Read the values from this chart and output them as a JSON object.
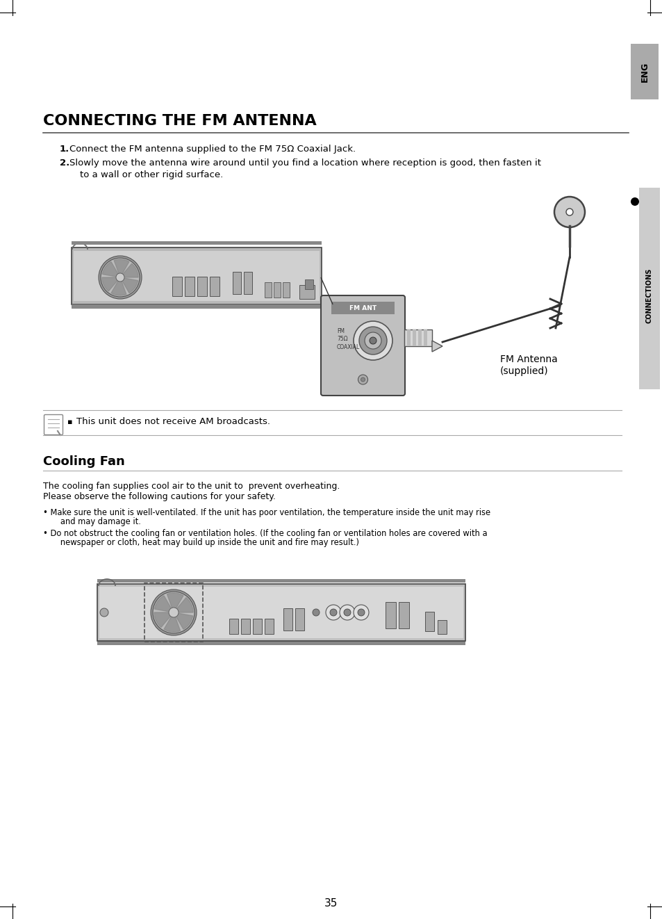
{
  "bg_color": "#ffffff",
  "page_number": "35",
  "eng_tab_text": "ENG",
  "connections_tab_text": "CONNECTIONS",
  "title": "CONNECTING THE FM ANTENNA",
  "step1_bold": "1.",
  "step1_text": "Connect the FM antenna supplied to the FM 75Ω Coaxial Jack.",
  "step2_bold": "2.",
  "step2_line1": "Slowly move the antenna wire around until you find a location where reception is good, then fasten it",
  "step2_line2": "to a wall or other rigid surface.",
  "note_text": "This unit does not receive AM broadcasts.",
  "cooling_title": "Cooling Fan",
  "cooling_line1": "The cooling fan supplies cool air to the unit to  prevent overheating.",
  "cooling_line2": "Please observe the following cautions for your safety.",
  "bullet1_line1": "• Make sure the unit is well-ventilated. If the unit has poor ventilation, the temperature inside the unit may rise",
  "bullet1_line2": "   and may damage it.",
  "bullet2_line1": "• Do not obstruct the cooling fan or ventilation holes. (If the cooling fan or ventilation holes are covered with a",
  "bullet2_line2": "   newspaper or cloth, heat may build up inside the unit and fire may result.)",
  "fm_antenna_label_line1": "FM Antenna",
  "fm_antenna_label_line2": "(supplied)"
}
